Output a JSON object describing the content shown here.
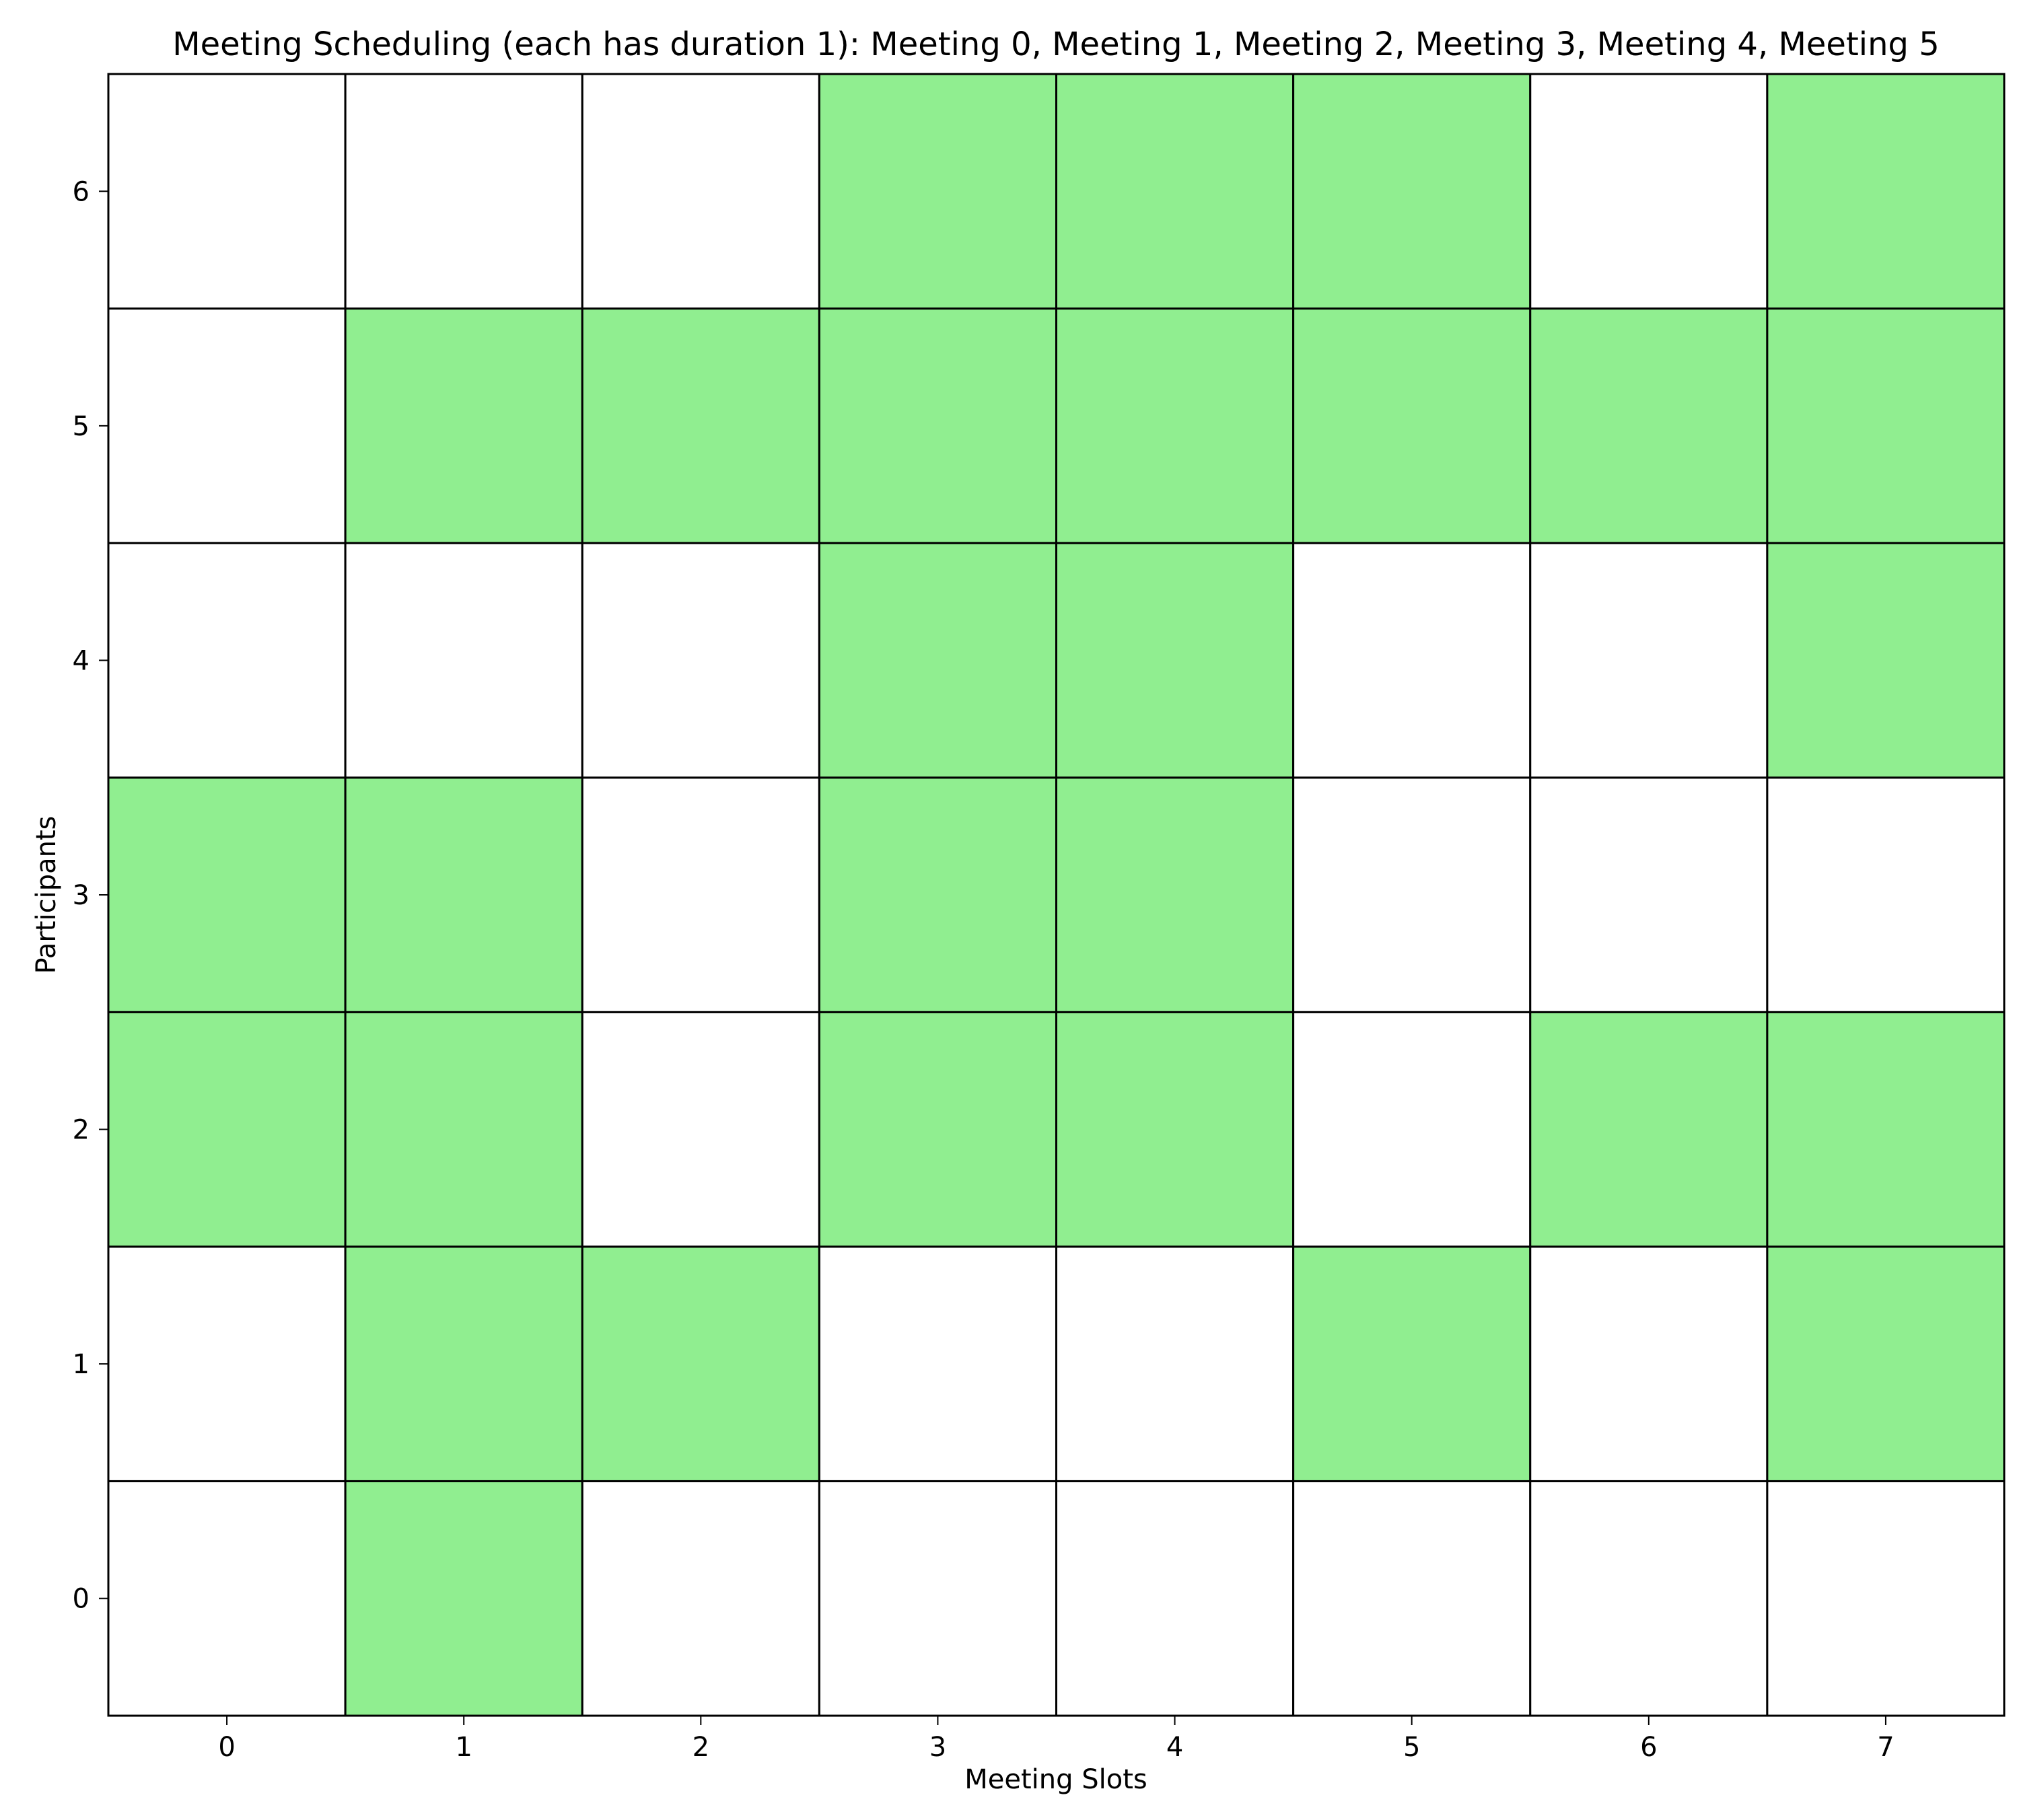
{
  "chart_data": {
    "type": "heatmap",
    "title": "Meeting Scheduling (each has duration 1): Meeting 0, Meeting 1, Meeting 2, Meeting 3, Meeting 4, Meeting 5",
    "xlabel": "Meeting Slots",
    "ylabel": "Participants",
    "x_categories": [
      "0",
      "1",
      "2",
      "3",
      "4",
      "5",
      "6",
      "7"
    ],
    "y_categories": [
      "0",
      "1",
      "2",
      "3",
      "4",
      "5",
      "6"
    ],
    "cells_by_participant": [
      [
        0,
        1,
        0,
        0,
        0,
        0,
        0,
        0
      ],
      [
        0,
        1,
        1,
        0,
        0,
        1,
        0,
        1
      ],
      [
        1,
        1,
        0,
        1,
        1,
        0,
        1,
        1
      ],
      [
        1,
        1,
        0,
        1,
        1,
        0,
        0,
        0
      ],
      [
        0,
        0,
        0,
        1,
        1,
        0,
        0,
        1
      ],
      [
        0,
        1,
        1,
        1,
        1,
        1,
        1,
        1
      ],
      [
        0,
        0,
        0,
        1,
        1,
        1,
        0,
        1
      ]
    ],
    "colors": {
      "filled": "#90ee90",
      "empty": "#ffffff",
      "grid": "#000000"
    },
    "grid": true,
    "legend": "none"
  }
}
